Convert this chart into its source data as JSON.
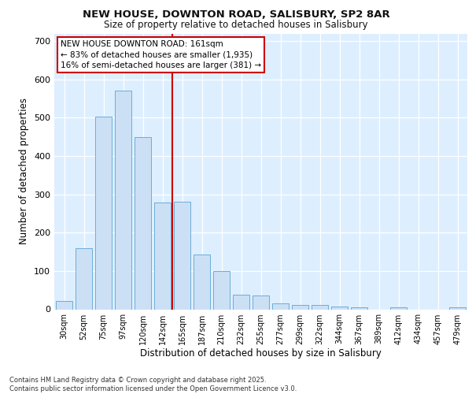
{
  "title_line1": "NEW HOUSE, DOWNTON ROAD, SALISBURY, SP2 8AR",
  "title_line2": "Size of property relative to detached houses in Salisbury",
  "xlabel": "Distribution of detached houses by size in Salisbury",
  "ylabel": "Number of detached properties",
  "categories": [
    "30sqm",
    "52sqm",
    "75sqm",
    "97sqm",
    "120sqm",
    "142sqm",
    "165sqm",
    "187sqm",
    "210sqm",
    "232sqm",
    "255sqm",
    "277sqm",
    "299sqm",
    "322sqm",
    "344sqm",
    "367sqm",
    "389sqm",
    "412sqm",
    "434sqm",
    "457sqm",
    "479sqm"
  ],
  "values": [
    22,
    160,
    502,
    570,
    450,
    278,
    280,
    143,
    100,
    38,
    35,
    15,
    12,
    12,
    7,
    5,
    0,
    5,
    0,
    0,
    5
  ],
  "bar_color": "#cce0f5",
  "bar_edge_color": "#6aaed6",
  "vline_color": "#cc0000",
  "annotation_title": "NEW HOUSE DOWNTON ROAD: 161sqm",
  "annotation_line2": "← 83% of detached houses are smaller (1,935)",
  "annotation_line3": "16% of semi-detached houses are larger (381) →",
  "annotation_box_color": "#ffffff",
  "annotation_box_edge": "#cc0000",
  "ylim": [
    0,
    720
  ],
  "yticks": [
    0,
    100,
    200,
    300,
    400,
    500,
    600,
    700
  ],
  "bg_color": "#ddeeff",
  "grid_color": "#ffffff",
  "fig_bg_color": "#ffffff",
  "footer_line1": "Contains HM Land Registry data © Crown copyright and database right 2025.",
  "footer_line2": "Contains public sector information licensed under the Open Government Licence v3.0."
}
